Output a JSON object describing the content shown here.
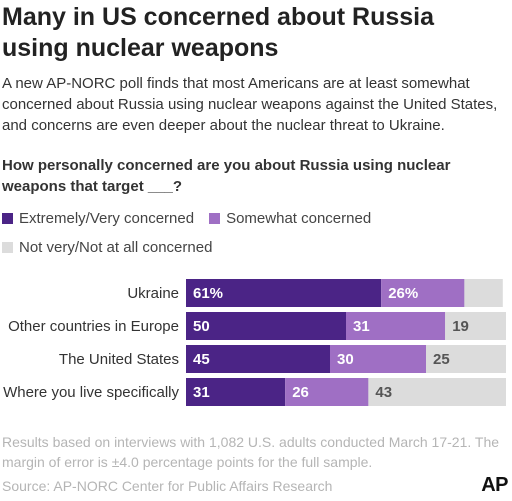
{
  "header": {
    "title": "Many in US concerned about Russia using nuclear weapons",
    "subtitle": "A new AP-NORC poll finds that most Americans are at least somewhat concerned about Russia using nuclear weapons against the United States, and concerns are even deeper about the nuclear threat to Ukraine.",
    "question": "How personally concerned are you about Russia using nuclear weapons that target ___?"
  },
  "colors": {
    "extremely": "#4b2486",
    "somewhat": "#9f6fc4",
    "not": "#dcdcdc"
  },
  "chart_data": {
    "type": "bar",
    "orientation": "horizontal",
    "stacked": true,
    "categories": [
      "Ukraine",
      "Other countries in Europe",
      "The United States",
      "Where you live specifically"
    ],
    "series": [
      {
        "name": "Extremely/Very concerned",
        "values": [
          61,
          50,
          45,
          31
        ],
        "labels": [
          "61%",
          "50",
          "45",
          "31"
        ]
      },
      {
        "name": "Somewhat concerned",
        "values": [
          26,
          31,
          30,
          26
        ],
        "labels": [
          "26%",
          "31",
          "30",
          "26"
        ]
      },
      {
        "name": "Not very/Not at all concerned",
        "values": [
          12,
          19,
          25,
          43
        ],
        "labels": [
          "",
          "19",
          "25",
          "43"
        ]
      }
    ],
    "xlim": [
      0,
      100
    ],
    "legend": "top"
  },
  "footer": {
    "note": "Results based on interviews with 1,082 U.S. adults conducted March 17-21. The margin of error is ±4.0 percentage points for the full sample.",
    "source": "Source: AP-NORC Center for Public Affairs Research",
    "logo": "AP"
  }
}
